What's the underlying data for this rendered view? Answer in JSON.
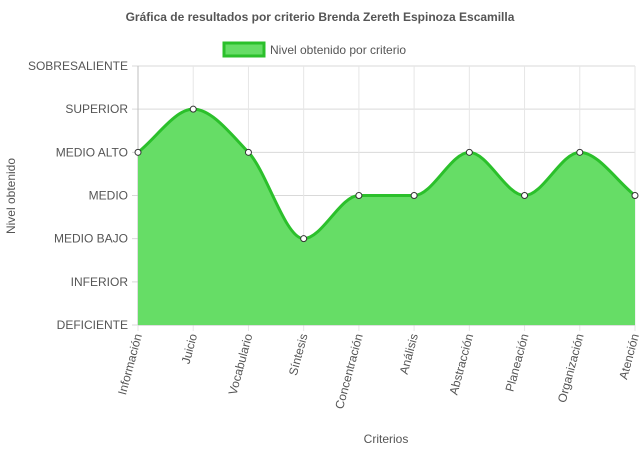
{
  "chart_data": {
    "type": "area",
    "title": "Gráfica de resultados por criterio Brenda Zereth Espinoza Escamilla",
    "xlabel": "Criterios",
    "ylabel": "Nivel obtenido",
    "levels": [
      "DEFICIENTE",
      "INFERIOR",
      "MEDIO BAJO",
      "MEDIO",
      "MEDIO ALTO",
      "SUPERIOR",
      "SOBRESALIENTE"
    ],
    "categories": [
      "Información",
      "Juicio",
      "Vocabulario",
      "Síntesis",
      "Concentración",
      "Análisis",
      "Abstracción",
      "Planeación",
      "Organización",
      "Atención"
    ],
    "series": [
      {
        "name": "Nivel obtenido por criterio",
        "values": [
          4,
          5,
          4,
          2,
          3,
          3,
          4,
          3,
          4,
          3
        ],
        "fill": "#66dd66",
        "stroke": "#2bc02b"
      }
    ],
    "ylim": [
      0,
      6
    ],
    "grid": true,
    "legend_position": "top"
  }
}
